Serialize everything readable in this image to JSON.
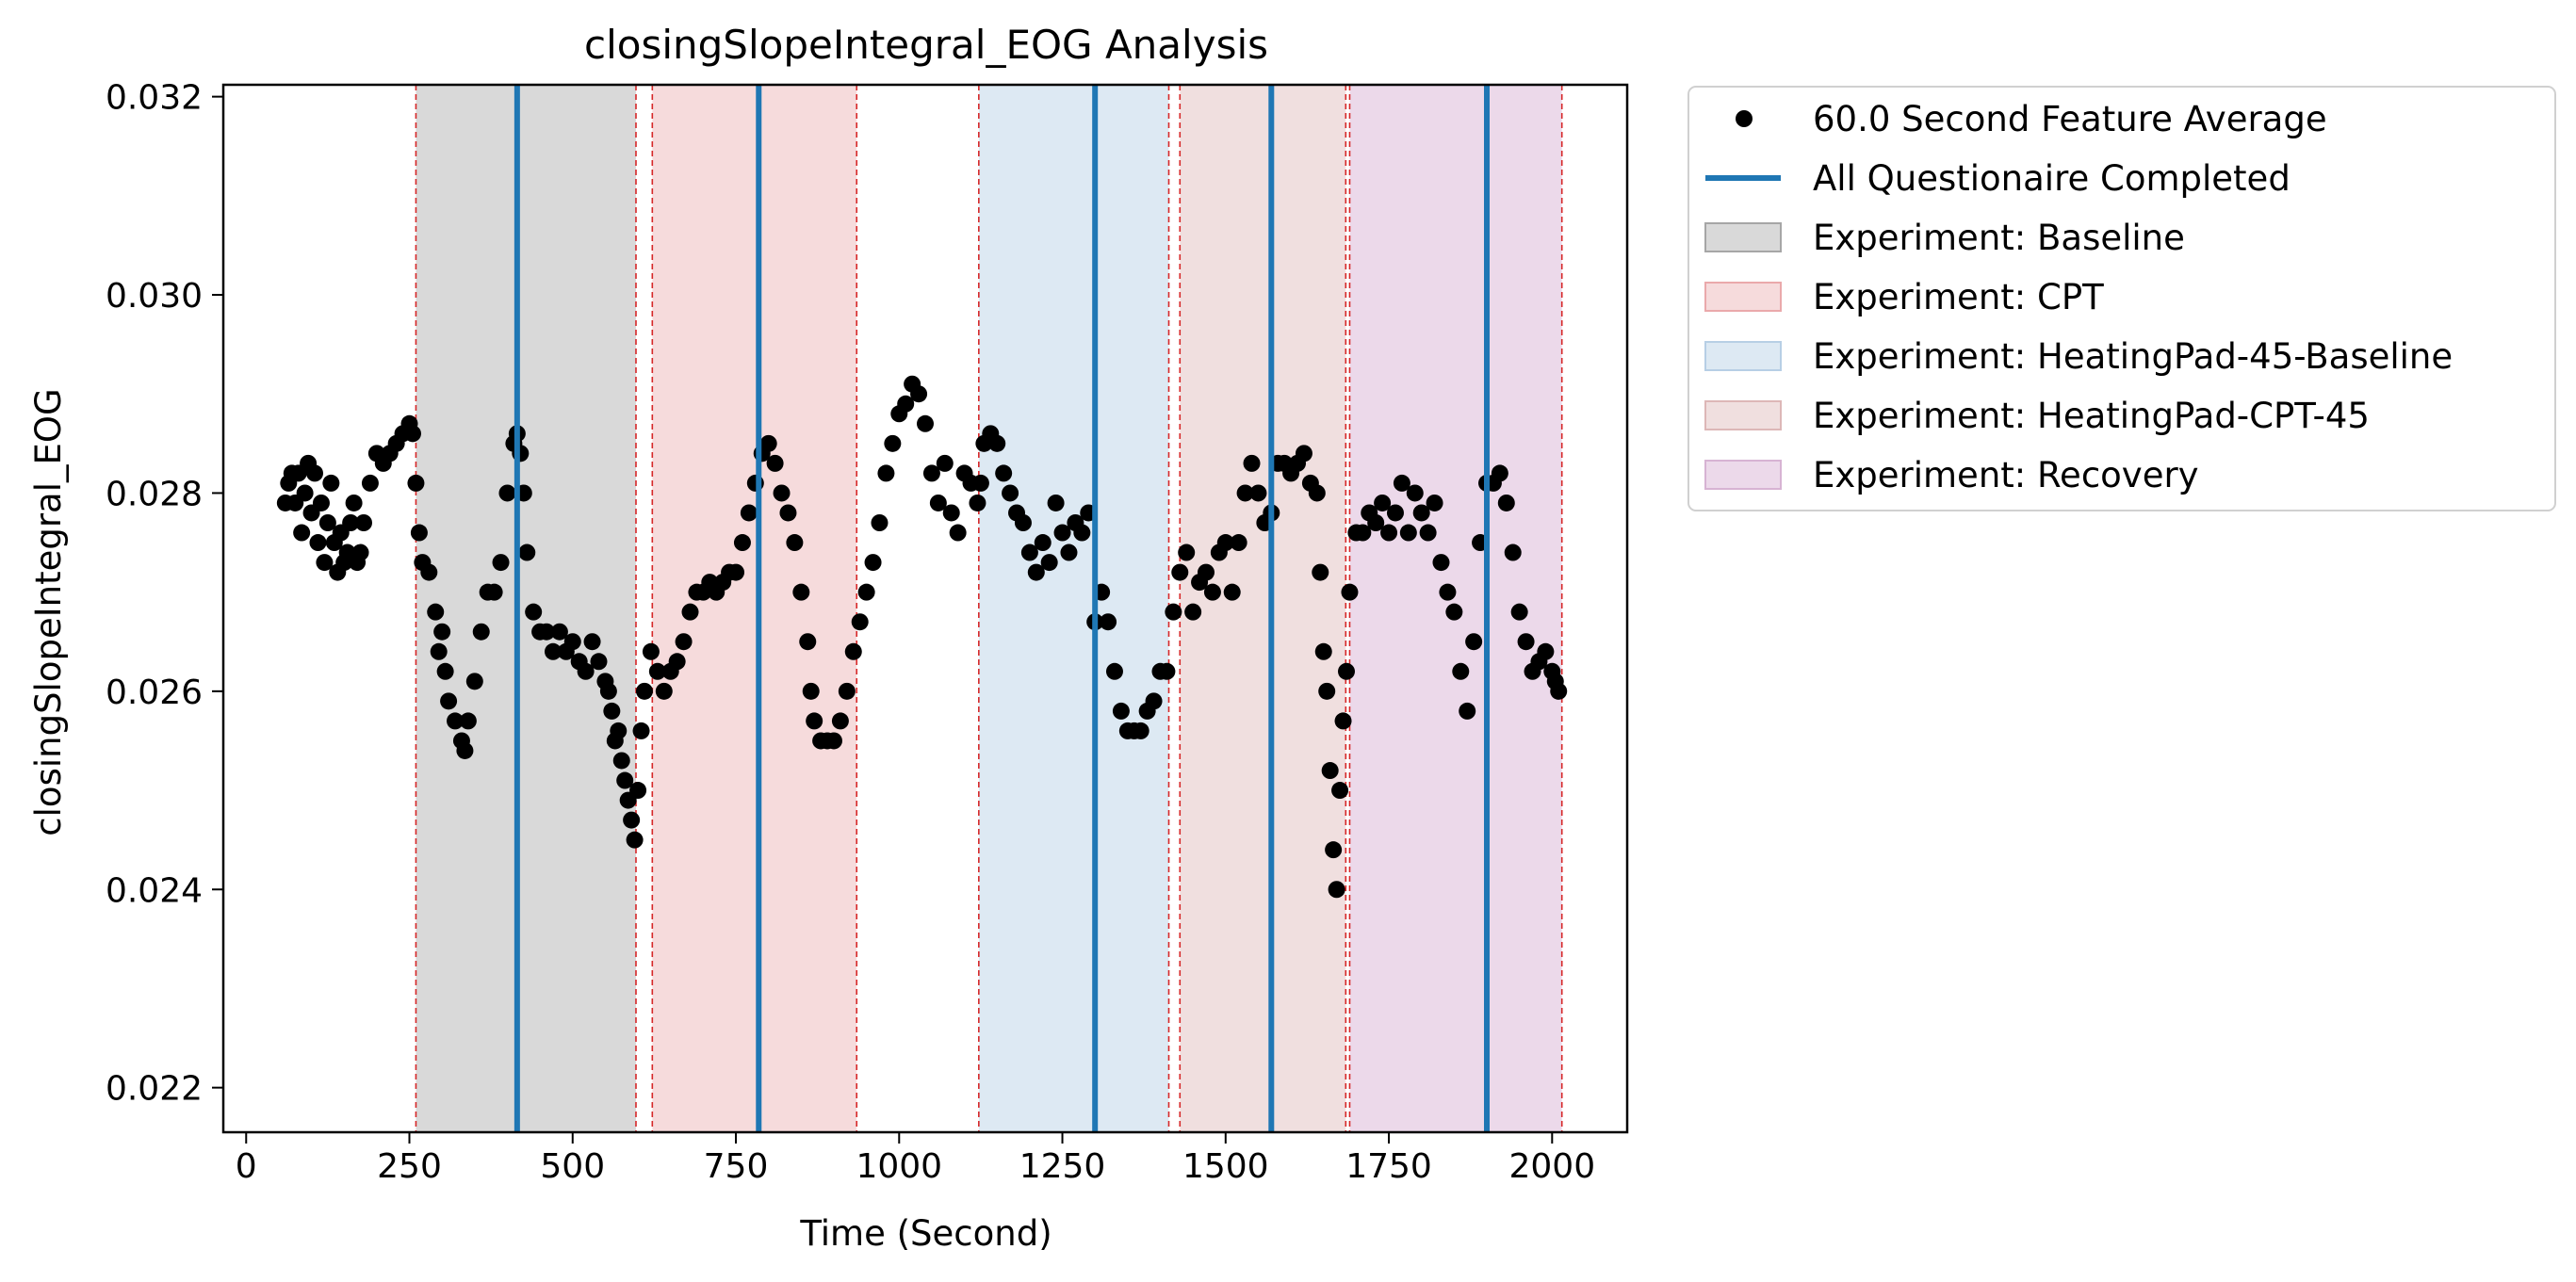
{
  "chart_data": {
    "type": "scatter",
    "title": "closingSlopeIntegral_EOG Analysis",
    "xlabel": "Time (Second)",
    "ylabel": "closingSlopeIntegral_EOG",
    "xlim": [
      -35,
      2115
    ],
    "ylim": [
      0.02155,
      0.03212
    ],
    "xticks": [
      0,
      250,
      500,
      750,
      1000,
      1250,
      1500,
      1750,
      2000
    ],
    "xtick_labels": [
      "0",
      "250",
      "500",
      "750",
      "1000",
      "1250",
      "1500",
      "1750",
      "2000"
    ],
    "yticks": [
      0.022,
      0.024,
      0.026,
      0.028,
      0.03,
      0.032
    ],
    "ytick_labels": [
      "0.022",
      "0.024",
      "0.026",
      "0.028",
      "0.030",
      "0.032"
    ],
    "grid": false,
    "legend_position": "outside-upper-right",
    "feature_series": {
      "name": "60.0 Second Feature Average",
      "color": "#000000",
      "points": [
        [
          60,
          0.0279
        ],
        [
          65,
          0.0281
        ],
        [
          70,
          0.0282
        ],
        [
          75,
          0.0279
        ],
        [
          80,
          0.0282
        ],
        [
          85,
          0.0276
        ],
        [
          90,
          0.028
        ],
        [
          95,
          0.0283
        ],
        [
          100,
          0.0278
        ],
        [
          105,
          0.0282
        ],
        [
          110,
          0.0275
        ],
        [
          115,
          0.0279
        ],
        [
          120,
          0.0273
        ],
        [
          125,
          0.0277
        ],
        [
          130,
          0.0281
        ],
        [
          135,
          0.0275
        ],
        [
          140,
          0.0272
        ],
        [
          145,
          0.0276
        ],
        [
          150,
          0.0273
        ],
        [
          155,
          0.0274
        ],
        [
          160,
          0.0277
        ],
        [
          165,
          0.0279
        ],
        [
          170,
          0.0273
        ],
        [
          175,
          0.0274
        ],
        [
          180,
          0.0277
        ],
        [
          190,
          0.0281
        ],
        [
          200,
          0.0284
        ],
        [
          210,
          0.0283
        ],
        [
          220,
          0.0284
        ],
        [
          230,
          0.0285
        ],
        [
          240,
          0.0286
        ],
        [
          250,
          0.0287
        ],
        [
          255,
          0.0286
        ],
        [
          260,
          0.0281
        ],
        [
          265,
          0.0276
        ],
        [
          270,
          0.0273
        ],
        [
          280,
          0.0272
        ],
        [
          290,
          0.0268
        ],
        [
          295,
          0.0264
        ],
        [
          300,
          0.0266
        ],
        [
          305,
          0.0262
        ],
        [
          310,
          0.0259
        ],
        [
          320,
          0.0257
        ],
        [
          330,
          0.0255
        ],
        [
          335,
          0.0254
        ],
        [
          340,
          0.0257
        ],
        [
          350,
          0.0261
        ],
        [
          360,
          0.0266
        ],
        [
          370,
          0.027
        ],
        [
          380,
          0.027
        ],
        [
          390,
          0.0273
        ],
        [
          400,
          0.028
        ],
        [
          410,
          0.0285
        ],
        [
          415,
          0.0286
        ],
        [
          420,
          0.0284
        ],
        [
          425,
          0.028
        ],
        [
          430,
          0.0274
        ],
        [
          440,
          0.0268
        ],
        [
          450,
          0.0266
        ],
        [
          460,
          0.0266
        ],
        [
          470,
          0.0264
        ],
        [
          480,
          0.0266
        ],
        [
          490,
          0.0264
        ],
        [
          500,
          0.0265
        ],
        [
          510,
          0.0263
        ],
        [
          520,
          0.0262
        ],
        [
          530,
          0.0265
        ],
        [
          540,
          0.0263
        ],
        [
          550,
          0.0261
        ],
        [
          555,
          0.026
        ],
        [
          560,
          0.0258
        ],
        [
          565,
          0.0255
        ],
        [
          570,
          0.0256
        ],
        [
          575,
          0.0253
        ],
        [
          580,
          0.0251
        ],
        [
          585,
          0.0249
        ],
        [
          590,
          0.0247
        ],
        [
          595,
          0.0245
        ],
        [
          600,
          0.025
        ],
        [
          605,
          0.0256
        ],
        [
          610,
          0.026
        ],
        [
          620,
          0.0264
        ],
        [
          630,
          0.0262
        ],
        [
          640,
          0.026
        ],
        [
          650,
          0.0262
        ],
        [
          660,
          0.0263
        ],
        [
          670,
          0.0265
        ],
        [
          680,
          0.0268
        ],
        [
          690,
          0.027
        ],
        [
          700,
          0.027
        ],
        [
          710,
          0.0271
        ],
        [
          720,
          0.027
        ],
        [
          730,
          0.0271
        ],
        [
          740,
          0.0272
        ],
        [
          750,
          0.0272
        ],
        [
          760,
          0.0275
        ],
        [
          770,
          0.0278
        ],
        [
          780,
          0.0281
        ],
        [
          790,
          0.0284
        ],
        [
          800,
          0.0285
        ],
        [
          810,
          0.0283
        ],
        [
          820,
          0.028
        ],
        [
          830,
          0.0278
        ],
        [
          840,
          0.0275
        ],
        [
          850,
          0.027
        ],
        [
          860,
          0.0265
        ],
        [
          865,
          0.026
        ],
        [
          870,
          0.0257
        ],
        [
          880,
          0.0255
        ],
        [
          890,
          0.0255
        ],
        [
          900,
          0.0255
        ],
        [
          910,
          0.0257
        ],
        [
          920,
          0.026
        ],
        [
          930,
          0.0264
        ],
        [
          940,
          0.0267
        ],
        [
          950,
          0.027
        ],
        [
          960,
          0.0273
        ],
        [
          970,
          0.0277
        ],
        [
          980,
          0.0282
        ],
        [
          990,
          0.0285
        ],
        [
          1000,
          0.0288
        ],
        [
          1010,
          0.0289
        ],
        [
          1020,
          0.0291
        ],
        [
          1030,
          0.029
        ],
        [
          1040,
          0.0287
        ],
        [
          1050,
          0.0282
        ],
        [
          1060,
          0.0279
        ],
        [
          1070,
          0.0283
        ],
        [
          1080,
          0.0278
        ],
        [
          1090,
          0.0276
        ],
        [
          1100,
          0.0282
        ],
        [
          1110,
          0.0281
        ],
        [
          1120,
          0.0279
        ],
        [
          1125,
          0.0281
        ],
        [
          1130,
          0.0285
        ],
        [
          1140,
          0.0286
        ],
        [
          1150,
          0.0285
        ],
        [
          1160,
          0.0282
        ],
        [
          1170,
          0.028
        ],
        [
          1180,
          0.0278
        ],
        [
          1190,
          0.0277
        ],
        [
          1200,
          0.0274
        ],
        [
          1210,
          0.0272
        ],
        [
          1220,
          0.0275
        ],
        [
          1230,
          0.0273
        ],
        [
          1240,
          0.0279
        ],
        [
          1250,
          0.0276
        ],
        [
          1260,
          0.0274
        ],
        [
          1270,
          0.0277
        ],
        [
          1280,
          0.0276
        ],
        [
          1290,
          0.0278
        ],
        [
          1300,
          0.0267
        ],
        [
          1310,
          0.027
        ],
        [
          1320,
          0.0267
        ],
        [
          1330,
          0.0262
        ],
        [
          1340,
          0.0258
        ],
        [
          1350,
          0.0256
        ],
        [
          1360,
          0.0256
        ],
        [
          1370,
          0.0256
        ],
        [
          1380,
          0.0258
        ],
        [
          1390,
          0.0259
        ],
        [
          1400,
          0.0262
        ],
        [
          1410,
          0.0262
        ],
        [
          1420,
          0.0268
        ],
        [
          1430,
          0.0272
        ],
        [
          1440,
          0.0274
        ],
        [
          1450,
          0.0268
        ],
        [
          1460,
          0.0271
        ],
        [
          1470,
          0.0272
        ],
        [
          1480,
          0.027
        ],
        [
          1490,
          0.0274
        ],
        [
          1500,
          0.0275
        ],
        [
          1510,
          0.027
        ],
        [
          1520,
          0.0275
        ],
        [
          1530,
          0.028
        ],
        [
          1540,
          0.0283
        ],
        [
          1550,
          0.028
        ],
        [
          1560,
          0.0277
        ],
        [
          1570,
          0.0278
        ],
        [
          1580,
          0.0283
        ],
        [
          1590,
          0.0283
        ],
        [
          1600,
          0.0282
        ],
        [
          1610,
          0.0283
        ],
        [
          1620,
          0.0284
        ],
        [
          1630,
          0.0281
        ],
        [
          1640,
          0.028
        ],
        [
          1645,
          0.0272
        ],
        [
          1650,
          0.0264
        ],
        [
          1655,
          0.026
        ],
        [
          1660,
          0.0252
        ],
        [
          1665,
          0.0244
        ],
        [
          1670,
          0.024
        ],
        [
          1675,
          0.025
        ],
        [
          1680,
          0.0257
        ],
        [
          1685,
          0.0262
        ],
        [
          1690,
          0.027
        ],
        [
          1700,
          0.0276
        ],
        [
          1710,
          0.0276
        ],
        [
          1720,
          0.0278
        ],
        [
          1730,
          0.0277
        ],
        [
          1740,
          0.0279
        ],
        [
          1750,
          0.0276
        ],
        [
          1760,
          0.0278
        ],
        [
          1770,
          0.0281
        ],
        [
          1780,
          0.0276
        ],
        [
          1790,
          0.028
        ],
        [
          1800,
          0.0278
        ],
        [
          1810,
          0.0276
        ],
        [
          1820,
          0.0279
        ],
        [
          1830,
          0.0273
        ],
        [
          1840,
          0.027
        ],
        [
          1850,
          0.0268
        ],
        [
          1860,
          0.0262
        ],
        [
          1870,
          0.0258
        ],
        [
          1880,
          0.0265
        ],
        [
          1890,
          0.0275
        ],
        [
          1900,
          0.0281
        ],
        [
          1910,
          0.0281
        ],
        [
          1920,
          0.0282
        ],
        [
          1930,
          0.0279
        ],
        [
          1940,
          0.0274
        ],
        [
          1950,
          0.0268
        ],
        [
          1960,
          0.0265
        ],
        [
          1970,
          0.0262
        ],
        [
          1980,
          0.0263
        ],
        [
          1990,
          0.0264
        ],
        [
          2000,
          0.0262
        ],
        [
          2005,
          0.0261
        ],
        [
          2010,
          0.026
        ]
      ]
    },
    "questionnaire_lines": {
      "name": "All Questionaire Completed",
      "color": "#1f77b4",
      "x": [
        415,
        785,
        1300,
        1570,
        1900
      ]
    },
    "experiment_spans": [
      {
        "name": "Experiment: Baseline",
        "start": 260,
        "end": 597,
        "color": "#d9d9d9",
        "edge": "#a6a6a6"
      },
      {
        "name": "Experiment: CPT",
        "start": 622,
        "end": 935,
        "color": "#f6dbdc",
        "edge": "#eaa9ab"
      },
      {
        "name": "Experiment: HeatingPad-45-Baseline",
        "start": 1122,
        "end": 1413,
        "color": "#dde9f3",
        "edge": "#b7cfe5"
      },
      {
        "name": "Experiment: HeatingPad-CPT-45",
        "start": 1430,
        "end": 1684,
        "color": "#f0dfdf",
        "edge": "#ddb7b7"
      },
      {
        "name": "Experiment: Recovery",
        "start": 1690,
        "end": 2015,
        "color": "#ecd9ea",
        "edge": "#d7b3d3"
      }
    ],
    "boundary_line_color": "#d62728",
    "legend": [
      {
        "label": "60.0 Second Feature Average",
        "kind": "marker",
        "color": "#000000"
      },
      {
        "label": "All Questionaire Completed",
        "kind": "line",
        "color": "#1f77b4"
      },
      {
        "label": "Experiment: Baseline",
        "kind": "patch",
        "color": "#d9d9d9",
        "edge": "#a6a6a6"
      },
      {
        "label": "Experiment: CPT",
        "kind": "patch",
        "color": "#f6dbdc",
        "edge": "#eaa9ab"
      },
      {
        "label": "Experiment: HeatingPad-45-Baseline",
        "kind": "patch",
        "color": "#dde9f3",
        "edge": "#b7cfe5"
      },
      {
        "label": "Experiment: HeatingPad-CPT-45",
        "kind": "patch",
        "color": "#f0dfdf",
        "edge": "#ddb7b7"
      },
      {
        "label": "Experiment: Recovery",
        "kind": "patch",
        "color": "#ecd9ea",
        "edge": "#d7b3d3"
      }
    ]
  }
}
